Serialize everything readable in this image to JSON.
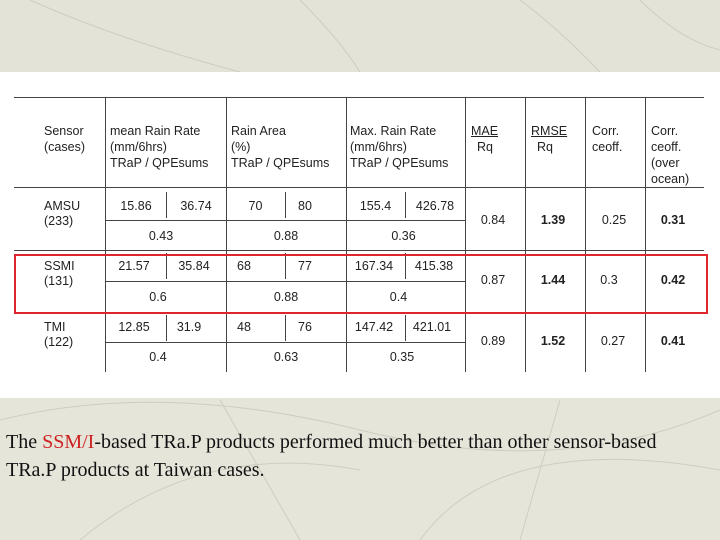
{
  "header": {
    "sensor": [
      "Sensor",
      "(cases)"
    ],
    "mean_rain": [
      "mean Rain Rate",
      "(mm/6hrs)",
      "TRaP / QPEsums"
    ],
    "rain_area": [
      "Rain Area",
      "(%)",
      "TRaP / QPEsums"
    ],
    "max_rain": [
      "Max. Rain Rate",
      "(mm/6hrs)",
      "TRaP / QPEsums"
    ],
    "mae": [
      "MAE",
      "Rq"
    ],
    "rmse": [
      "RMSE",
      "Rq"
    ],
    "corr": [
      "Corr.",
      "ceoff."
    ],
    "corr_ocean": [
      "Corr.",
      "ceoff.",
      "(over",
      "ocean)"
    ]
  },
  "rows": [
    {
      "sensor": "AMSU",
      "cases": "(233)",
      "mean": [
        "15.86",
        "36.74"
      ],
      "area": [
        "70",
        "80"
      ],
      "max": [
        "155.4",
        "426.78"
      ],
      "corr_row": [
        "0.43",
        "0.88",
        "0.36"
      ],
      "mae": "0.84",
      "rmse": "1.39",
      "corr": "0.25",
      "corr_ocean": "0.31"
    },
    {
      "sensor": "SSMI",
      "cases": "(131)",
      "mean": [
        "21.57",
        "35.84"
      ],
      "area": [
        "68",
        "77"
      ],
      "max": [
        "167.34",
        "415.38"
      ],
      "corr_row": [
        "0.6",
        "0.88",
        "0.4"
      ],
      "mae": "0.87",
      "rmse": "1.44",
      "corr": "0.3",
      "corr_ocean": "0.42"
    },
    {
      "sensor": "TMI",
      "cases": "(122)",
      "mean": [
        "12.85",
        "31.9"
      ],
      "area": [
        "48",
        "76"
      ],
      "max": [
        "147.42",
        "421.01"
      ],
      "corr_row": [
        "0.4",
        "0.63",
        "0.35"
      ],
      "mae": "0.89",
      "rmse": "1.52",
      "corr": "0.27",
      "corr_ocean": "0.41"
    }
  ],
  "caption": {
    "before": "The ",
    "highlight": "SSM/I",
    "after": "-based TRa.P products performed much better than other sensor-based TRa.P products at Taiwan cases."
  },
  "colors": {
    "highlight_box": "#e0262a",
    "caption_highlight": "#cc2222"
  }
}
